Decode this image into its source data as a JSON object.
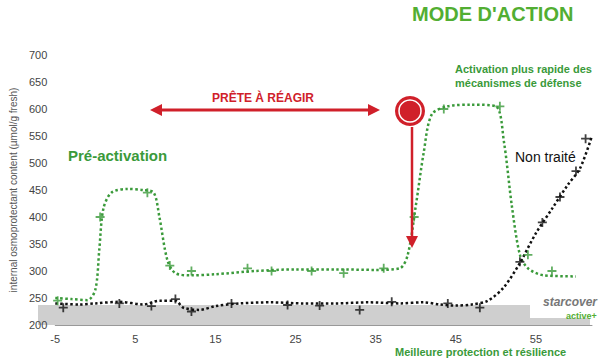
{
  "chart_data": {
    "type": "line",
    "title": "MODE D'ACTION",
    "y_label": "internal osmoprotectant content (µmol/g fresh)",
    "xlim": [
      -5,
      62
    ],
    "xticks": [
      -5,
      5,
      15,
      25,
      35,
      45,
      55
    ],
    "ylim": [
      200,
      700
    ],
    "yticks": [
      200,
      250,
      300,
      350,
      400,
      450,
      500,
      550,
      600,
      650,
      700
    ],
    "grid": false,
    "series": [
      {
        "type": "line",
        "color": "#3a9a3a",
        "line_style": "dotted",
        "marker": "none",
        "x": [
          -5,
          -3,
          -1,
          0,
          0.5,
          1,
          2,
          4,
          6,
          7.3,
          8,
          9,
          10,
          12,
          15,
          20,
          25,
          30,
          35,
          38,
          39,
          40,
          41,
          42,
          44,
          47,
          50,
          51,
          52,
          53,
          54,
          56,
          60
        ],
        "values": [
          250,
          248,
          246,
          265,
          340,
          415,
          445,
          452,
          450,
          445,
          400,
          320,
          296,
          292,
          294,
          300,
          303,
          303,
          302,
          305,
          330,
          420,
          520,
          590,
          605,
          608,
          605,
          540,
          420,
          330,
          305,
          292,
          290
        ]
      },
      {
        "type": "scatter",
        "color": "#3a9a3a",
        "marker": "+",
        "x": [
          -4.7,
          0.6,
          6.5,
          9.3,
          12,
          19,
          22,
          27,
          31,
          36,
          39.8,
          43.5,
          50.5,
          54,
          57
        ],
        "values": [
          245,
          400,
          445,
          310,
          300,
          305,
          300,
          300,
          296,
          305,
          400,
          600,
          605,
          330,
          300
        ]
      },
      {
        "name": "Non traité",
        "type": "line",
        "color": "#111111",
        "line_style": "dotted",
        "marker": "none",
        "x": [
          -5,
          -2,
          0,
          3,
          6,
          8,
          10,
          11,
          13,
          15,
          18,
          22,
          26,
          30,
          34,
          38,
          41,
          43,
          45,
          47,
          49,
          51,
          53,
          55,
          57,
          59,
          60.5,
          62
        ],
        "values": [
          240,
          238,
          240,
          243,
          238,
          245,
          245,
          232,
          228,
          235,
          240,
          242,
          240,
          240,
          242,
          240,
          242,
          238,
          236,
          238,
          245,
          270,
          315,
          370,
          415,
          460,
          490,
          550
        ]
      },
      {
        "type": "scatter",
        "color": "#111111",
        "marker": "+",
        "x": [
          -4,
          3,
          7,
          10,
          12,
          17,
          24,
          28,
          33,
          37,
          44,
          48,
          53,
          55.8,
          58,
          60,
          61.2
        ],
        "values": [
          232,
          240,
          235,
          248,
          225,
          240,
          237,
          236,
          228,
          243,
          240,
          232,
          317,
          390,
          437,
          485,
          545
        ]
      }
    ],
    "annotations": [
      "Pré-activation",
      "PRÊTE À RÉAGIR",
      "Activation plus rapide des mécanismes de défense",
      "Meilleure protection et résilience",
      "starcover",
      "active+"
    ]
  }
}
